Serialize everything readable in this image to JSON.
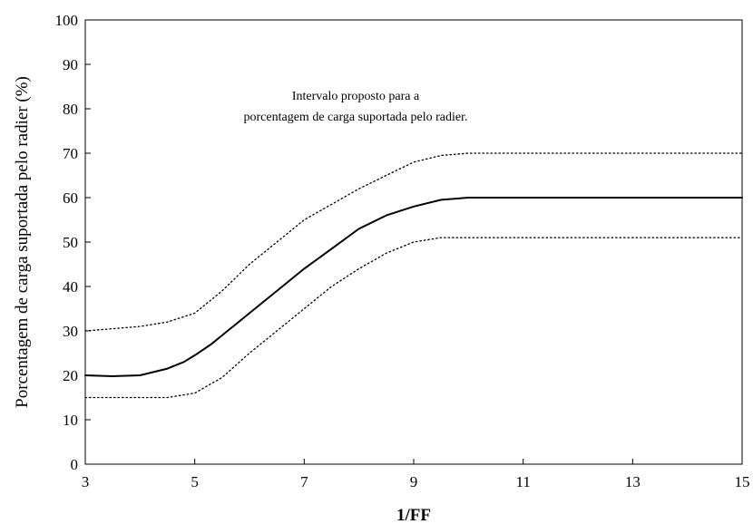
{
  "chart_data": {
    "type": "line",
    "title": "",
    "xlabel": "1/FF",
    "ylabel": "Porcentagem de carga suportada pelo radier (%)",
    "xlim": [
      3,
      15
    ],
    "ylim": [
      0,
      100
    ],
    "xticks": [
      3,
      5,
      7,
      9,
      11,
      13,
      15
    ],
    "yticks": [
      0,
      10,
      20,
      30,
      40,
      50,
      60,
      70,
      80,
      90,
      100
    ],
    "grid": false,
    "legend": "none",
    "annotation": [
      "Intervalo proposto para a",
      "porcentagem de carga suportada pelo radier."
    ],
    "series": [
      {
        "style": "dotted",
        "color": "#000000",
        "x": [
          3,
          3.5,
          4,
          4.5,
          5,
          5.5,
          6,
          6.5,
          7,
          7.5,
          8,
          8.5,
          9,
          9.5,
          10,
          11,
          12,
          13,
          14,
          15
        ],
        "y": [
          30,
          30.5,
          31,
          32,
          34,
          39,
          45,
          50,
          55,
          58.5,
          62,
          65,
          68,
          69.5,
          70,
          70,
          70,
          70,
          70,
          70
        ]
      },
      {
        "style": "solid",
        "color": "#000000",
        "x": [
          3,
          3.5,
          4,
          4.5,
          4.8,
          5,
          5.3,
          5.7,
          6,
          6.5,
          7,
          7.5,
          8,
          8.5,
          9,
          9.5,
          10,
          11,
          12,
          13,
          14,
          15
        ],
        "y": [
          20,
          19.8,
          20,
          21.5,
          23,
          24.5,
          27,
          31,
          34,
          39,
          44,
          48.5,
          53,
          56,
          58,
          59.5,
          60,
          60,
          60,
          60,
          60,
          60
        ]
      },
      {
        "style": "dotted",
        "color": "#000000",
        "x": [
          3,
          3.5,
          4,
          4.5,
          5,
          5.5,
          6,
          6.5,
          7,
          7.5,
          8,
          8.5,
          9,
          9.5,
          10,
          11,
          12,
          13,
          14,
          15
        ],
        "y": [
          15,
          15,
          15,
          15,
          16,
          19.5,
          25,
          30,
          35,
          40,
          44,
          47.5,
          50,
          51,
          51,
          51,
          51,
          51,
          51,
          51
        ]
      }
    ]
  }
}
